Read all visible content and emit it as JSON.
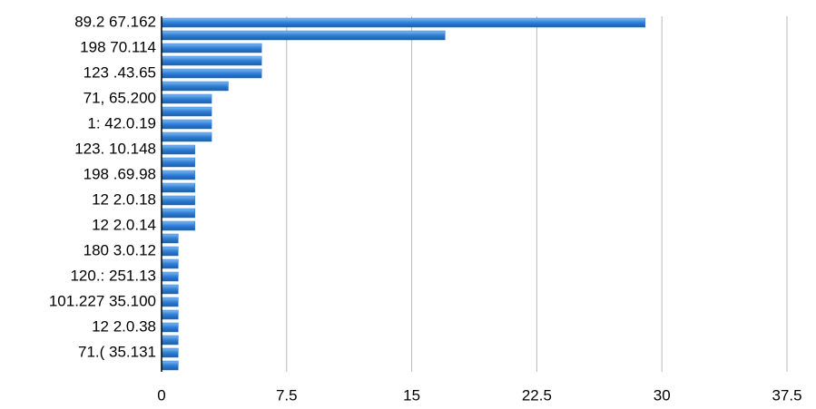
{
  "chart_data": {
    "type": "hbar",
    "categories": [
      "89.2 67.162",
      null,
      "198 70.114",
      null,
      "123 .43.65",
      null,
      "71, 65.200",
      null,
      "1: 42.0.19",
      null,
      "123. 10.148",
      null,
      "198 .69.98",
      null,
      "12 2.0.18",
      null,
      "12 2.0.14",
      null,
      "180 3.0.12",
      null,
      "120.: 251.13",
      null,
      "101.227 35.100",
      null,
      "12 2.0.38",
      null,
      "71.( 35.131",
      null
    ],
    "values": [
      29,
      17,
      6,
      6,
      6,
      4,
      3,
      3,
      3,
      3,
      2,
      2,
      2,
      2,
      2,
      2,
      2,
      1,
      1,
      1,
      1,
      1,
      1,
      1,
      1,
      1,
      1,
      1
    ],
    "color": "#2f7fd6",
    "xlim": [
      0,
      37.5
    ],
    "xticks": [
      0,
      7.5,
      15,
      22.5,
      30,
      37.5
    ],
    "grid": true
  }
}
